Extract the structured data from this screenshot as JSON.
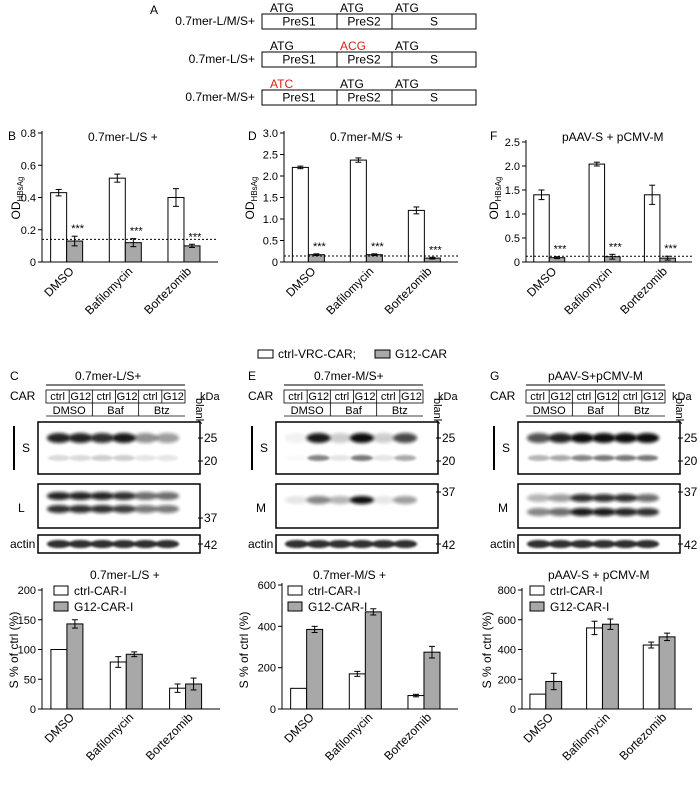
{
  "panelA": {
    "label": "A",
    "constructs": [
      {
        "name": "0.7mer-L/M/S+",
        "codons": [
          {
            "text": "ATG",
            "mutant": false
          },
          {
            "text": "ATG",
            "mutant": false
          },
          {
            "text": "ATG",
            "mutant": false
          }
        ],
        "segments": [
          "PreS1",
          "PreS2",
          "S"
        ]
      },
      {
        "name": "0.7mer-L/S+",
        "codons": [
          {
            "text": "ATG",
            "mutant": false
          },
          {
            "text": "ACG",
            "mutant": true
          },
          {
            "text": "ATG",
            "mutant": false
          }
        ],
        "segments": [
          "PreS1",
          "PreS2",
          "S"
        ]
      },
      {
        "name": "0.7mer-M/S+",
        "codons": [
          {
            "text": "ATC",
            "mutant": true
          },
          {
            "text": "ATG",
            "mutant": false
          },
          {
            "text": "ATG",
            "mutant": false
          }
        ],
        "segments": [
          "PreS1",
          "PreS2",
          "S"
        ]
      }
    ],
    "mutant_color": "#e0201c"
  },
  "elisa_legend": {
    "ctrl": "ctrl-VRC-CAR;",
    "g12": "G12-CAR"
  },
  "blot_common": {
    "car_label": "CAR",
    "lanes": [
      "ctrl",
      "G12",
      "ctrl",
      "G12",
      "ctrl",
      "G12"
    ],
    "groups": [
      "DMSO",
      "Baf",
      "Btz"
    ],
    "blank": "blank",
    "kda": "kDa",
    "actin": "actin",
    "s_label": "S"
  },
  "chart_data": [
    {
      "id": "B",
      "label": "B",
      "type": "bar",
      "title": "0.7mer-L/S +",
      "ylabel": "OD",
      "ylabel_sub": "HBsAg",
      "categories": [
        "DMSO",
        "Bafilomycin",
        "Bortezomib"
      ],
      "ylim": [
        0,
        0.8
      ],
      "yticks": [
        "0",
        "0.2",
        "0.4",
        "0.6",
        "0.8"
      ],
      "cutoff": 0.14,
      "series": [
        {
          "name": "ctrl-VRC-CAR;",
          "values": [
            0.43,
            0.52,
            0.4
          ],
          "errors": [
            0.02,
            0.025,
            0.055
          ]
        },
        {
          "name": "G12-CAR",
          "values": [
            0.13,
            0.12,
            0.1
          ],
          "errors": [
            0.03,
            0.025,
            0.01
          ]
        }
      ],
      "annotations": [
        "***",
        "***",
        "***"
      ]
    },
    {
      "id": "D",
      "label": "D",
      "type": "bar",
      "title": "0.7mer-M/S +",
      "ylabel": "OD",
      "ylabel_sub": "HBsAg",
      "categories": [
        "DMSO",
        "Bafilomycin",
        "Bortezomib"
      ],
      "ylim": [
        0,
        3.0
      ],
      "yticks": [
        "0",
        "0.5",
        "1.0",
        "1.5",
        "2.0",
        "2.5",
        "3.0"
      ],
      "cutoff": 0.14,
      "series": [
        {
          "name": "ctrl-VRC-CAR;",
          "values": [
            2.2,
            2.37,
            1.2
          ],
          "errors": [
            0.03,
            0.05,
            0.08
          ]
        },
        {
          "name": "G12-CAR",
          "values": [
            0.17,
            0.17,
            0.09
          ],
          "errors": [
            0.02,
            0.02,
            0.02
          ]
        }
      ],
      "annotations": [
        "***",
        "***",
        "***"
      ]
    },
    {
      "id": "F",
      "label": "F",
      "type": "bar",
      "title": "pAAV-S + pCMV-M",
      "ylabel": "OD",
      "ylabel_sub": "HBsAg",
      "categories": [
        "DMSO",
        "Bafilomycin",
        "Bortezomib"
      ],
      "ylim": [
        0,
        2.5
      ],
      "yticks": [
        "0",
        "0.5",
        "1.0",
        "1.5",
        "2.0",
        "2.5"
      ],
      "cutoff": 0.12,
      "series": [
        {
          "name": "ctrl-VRC-CAR;",
          "values": [
            1.4,
            2.04,
            1.4
          ],
          "errors": [
            0.1,
            0.04,
            0.2
          ]
        },
        {
          "name": "G12-CAR",
          "values": [
            0.09,
            0.11,
            0.08
          ],
          "errors": [
            0.02,
            0.05,
            0.04
          ]
        }
      ],
      "annotations": [
        "***",
        "***",
        "***"
      ]
    },
    {
      "id": "C2",
      "type": "bar",
      "title": "0.7mer-L/S +",
      "ylabel": "S % of ctrl (%)",
      "categories": [
        "DMSO",
        "Bafilomycin",
        "Bortezomib"
      ],
      "ylim": [
        0,
        200
      ],
      "yticks": [
        "0",
        "50",
        "100",
        "150",
        "200"
      ],
      "series": [
        {
          "name": "ctrl-CAR-I",
          "values": [
            100,
            79,
            35
          ],
          "errors": [
            0,
            9,
            7
          ]
        },
        {
          "name": "G12-CAR-I",
          "values": [
            143,
            92,
            42
          ],
          "errors": [
            7,
            4,
            10
          ]
        }
      ]
    },
    {
      "id": "E2",
      "type": "bar",
      "title": "0.7mer-M/S +",
      "ylabel": "S % of ctrl (%)",
      "categories": [
        "DMSO",
        "Bafilomycin",
        "Bortezomib"
      ],
      "ylim": [
        0,
        600
      ],
      "yticks": [
        "0",
        "200",
        "400",
        "600"
      ],
      "series": [
        {
          "name": "ctrl-CAR-I",
          "values": [
            100,
            170,
            65
          ],
          "errors": [
            0,
            12,
            6
          ]
        },
        {
          "name": "G12-CAR-I",
          "values": [
            385,
            470,
            275
          ],
          "errors": [
            15,
            15,
            28
          ]
        }
      ]
    },
    {
      "id": "G2",
      "type": "bar",
      "title": "pAAV-S + pCMV-M",
      "ylabel": "S % of ctrl (%)",
      "categories": [
        "DMSO",
        "Bafilomycin",
        "Bortezomib"
      ],
      "ylim": [
        0,
        800
      ],
      "yticks": [
        "0",
        "200",
        "400",
        "600",
        "800"
      ],
      "series": [
        {
          "name": "ctrl-CAR-I",
          "values": [
            100,
            545,
            430
          ],
          "errors": [
            0,
            45,
            20
          ]
        },
        {
          "name": "G12-CAR-I",
          "values": [
            185,
            570,
            485
          ],
          "errors": [
            55,
            35,
            25
          ]
        }
      ]
    }
  ],
  "blots": [
    {
      "id": "C",
      "label": "C",
      "title": "0.7mer-L/S+",
      "mid_label": "L",
      "markers": {
        "s": [
          "25",
          "20"
        ],
        "mid": [
          "37"
        ],
        "actin": [
          "42"
        ]
      }
    },
    {
      "id": "E",
      "label": "E",
      "title": "0.7mer-M/S+",
      "mid_label": "M",
      "markers": {
        "s": [
          "25",
          "20"
        ],
        "mid": [
          "37"
        ],
        "actin": [
          "42"
        ]
      }
    },
    {
      "id": "G",
      "label": "G",
      "title": "pAAV-S+pCMV-M",
      "mid_label": "M",
      "markers": {
        "s": [
          "25",
          "20"
        ],
        "mid": [
          "37"
        ],
        "actin": [
          "42"
        ]
      }
    }
  ]
}
